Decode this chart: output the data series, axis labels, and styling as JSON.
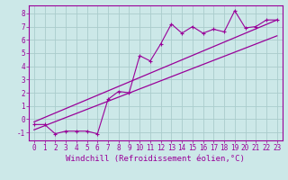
{
  "bg_color": "#cce8e8",
  "line_color": "#990099",
  "grid_color": "#aacccc",
  "xlabel": "Windchill (Refroidissement éolien,°C)",
  "ylabel_ticks": [
    -1,
    0,
    1,
    2,
    3,
    4,
    5,
    6,
    7,
    8
  ],
  "xtick_labels": [
    "0",
    "1",
    "2",
    "3",
    "4",
    "5",
    "6",
    "7",
    "8",
    "9",
    "10",
    "11",
    "12",
    "13",
    "14",
    "15",
    "16",
    "17",
    "18",
    "19",
    "20",
    "21",
    "22",
    "23"
  ],
  "xlim": [
    -0.5,
    23.5
  ],
  "ylim": [
    -1.6,
    8.6
  ],
  "scatter_x": [
    0,
    1,
    2,
    3,
    4,
    5,
    6,
    7,
    8,
    9,
    10,
    11,
    12,
    13,
    14,
    15,
    16,
    17,
    18,
    19,
    20,
    21,
    22,
    23
  ],
  "scatter_y": [
    -0.4,
    -0.4,
    -1.1,
    -0.9,
    -0.9,
    -0.9,
    -1.1,
    1.5,
    2.1,
    2.0,
    4.8,
    4.4,
    5.7,
    7.2,
    6.5,
    7.0,
    6.5,
    6.8,
    6.6,
    8.2,
    6.9,
    7.0,
    7.5,
    7.5
  ],
  "line1_x": [
    0,
    23
  ],
  "line1_y": [
    -0.2,
    7.5
  ],
  "line2_x": [
    0,
    23
  ],
  "line2_y": [
    -0.8,
    6.3
  ],
  "tick_fontsize": 5.5,
  "xlabel_fontsize": 6.5,
  "marker_size": 3,
  "marker_lw": 0.8
}
